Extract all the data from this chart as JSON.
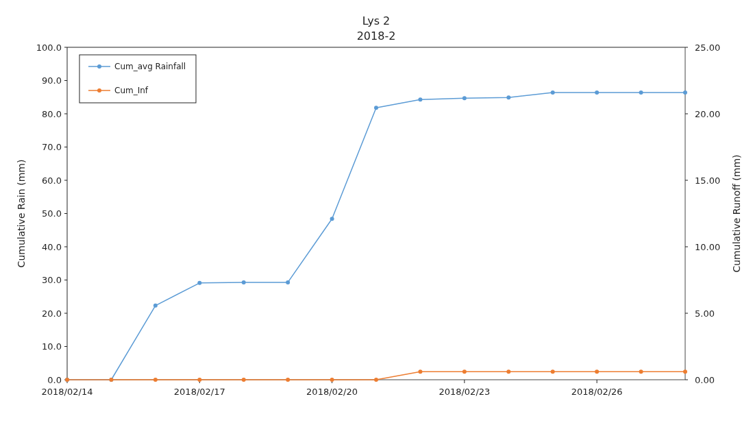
{
  "chart_data": {
    "type": "line",
    "title": "Lys 2",
    "subtitle": "2018-2",
    "ylabel": "Cumulative Rain (mm)",
    "y2label": "Cumulative Runoff (mm)",
    "x": [
      "2018-02-14",
      "2018-02-15",
      "2018-02-16",
      "2018-02-17",
      "2018-02-18",
      "2018-02-19",
      "2018-02-20",
      "2018-02-21",
      "2018-02-22",
      "2018-02-23",
      "2018-02-24",
      "2018-02-25",
      "2018-02-26",
      "2018-02-27",
      "2018-02-28"
    ],
    "series": [
      {
        "name": "Cum_avg Rainfall",
        "color": "#5b9bd5",
        "values": [
          0,
          0,
          22.3,
          29.1,
          29.3,
          29.3,
          48.4,
          81.8,
          84.3,
          84.7,
          84.9,
          86.4,
          86.4,
          86.4,
          86.4
        ]
      },
      {
        "name": "Cum_Inf",
        "color": "#ed7d31",
        "axis": "y2",
        "values": [
          0,
          0,
          0,
          0,
          0,
          0,
          0,
          0,
          0.6,
          0.6,
          0.6,
          0.6,
          0.6,
          0.6,
          0.6
        ]
      }
    ],
    "xlim": [
      "2018-02-14",
      "2018-02-28"
    ],
    "xticks": [
      {
        "value": "2018-02-14",
        "label": "2018/02/14"
      },
      {
        "value": "2018-02-17",
        "label": "2018/02/17"
      },
      {
        "value": "2018-02-20",
        "label": "2018/02/20"
      },
      {
        "value": "2018-02-23",
        "label": "2018/02/23"
      },
      {
        "value": "2018-02-26",
        "label": "2018/02/26"
      }
    ],
    "ylim": [
      0,
      100
    ],
    "yticks": [
      {
        "value": 0,
        "label": "0.0"
      },
      {
        "value": 10,
        "label": "10.0"
      },
      {
        "value": 20,
        "label": "20.0"
      },
      {
        "value": 30,
        "label": "30.0"
      },
      {
        "value": 40,
        "label": "40.0"
      },
      {
        "value": 50,
        "label": "50.0"
      },
      {
        "value": 60,
        "label": "60.0"
      },
      {
        "value": 70,
        "label": "70.0"
      },
      {
        "value": 80,
        "label": "80.0"
      },
      {
        "value": 90,
        "label": "90.0"
      },
      {
        "value": 100,
        "label": "100.0"
      }
    ],
    "y2lim": [
      0,
      25
    ],
    "y2ticks": [
      {
        "value": 0,
        "label": "0.00"
      },
      {
        "value": 5,
        "label": "5.00"
      },
      {
        "value": 10,
        "label": "10.00"
      },
      {
        "value": 15,
        "label": "15.00"
      },
      {
        "value": 20,
        "label": "20.00"
      },
      {
        "value": 25,
        "label": "25.00"
      }
    ],
    "legend": "top left",
    "marker": "circle",
    "line_style": "solid"
  }
}
